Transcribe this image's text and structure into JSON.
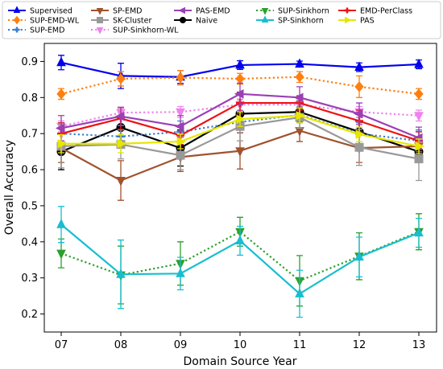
{
  "chart_data": {
    "type": "line",
    "xlabel": "Domain Source Year",
    "ylabel": "Overall Accuracy",
    "categories": [
      "07",
      "08",
      "09",
      "10",
      "11",
      "12",
      "13"
    ],
    "ylim": [
      0.15,
      0.95
    ],
    "yticks": [
      0.2,
      0.3,
      0.4,
      0.5,
      0.6,
      0.7,
      0.8,
      0.9
    ],
    "yticklabels": [
      "0.2",
      "0.3",
      "0.4",
      "0.5",
      "0.6",
      "0.7",
      "0.8",
      "0.9"
    ],
    "grid": false,
    "legend_position": "top, above plot, 4 columns",
    "series": [
      {
        "name": "Supervised",
        "color": "#0000ee",
        "style": "solid",
        "marker": "tri-up",
        "values": [
          0.897,
          0.86,
          0.857,
          0.89,
          0.893,
          0.884,
          0.892
        ],
        "errors": [
          0.02,
          0.035,
          0.018,
          0.012,
          0.008,
          0.012,
          0.012
        ]
      },
      {
        "name": "Naive",
        "color": "#000000",
        "style": "solid",
        "marker": "circle",
        "values": [
          0.65,
          0.717,
          0.66,
          0.755,
          0.76,
          0.705,
          0.65
        ],
        "errors": [
          0.05,
          0.05,
          0.05,
          0.04,
          0.03,
          0.04,
          0.03
        ]
      },
      {
        "name": "SUP-EMD",
        "color": "#3a7ed1",
        "style": "dotted",
        "marker": "plus",
        "values": [
          0.7,
          0.692,
          0.705,
          0.732,
          0.752,
          0.7,
          0.68
        ],
        "errors": [
          0.03,
          0.03,
          0.03,
          0.03,
          0.02,
          0.03,
          0.03
        ]
      },
      {
        "name": "SUP-EMD-WL",
        "color": "#ff7f0e",
        "style": "dotted",
        "marker": "diamond",
        "values": [
          0.81,
          0.852,
          0.855,
          0.852,
          0.857,
          0.83,
          0.81
        ],
        "errors": [
          0.015,
          0.02,
          0.02,
          0.015,
          0.015,
          0.03,
          0.015
        ]
      },
      {
        "name": "SUP-Sinkhorn",
        "color": "#2ca02c",
        "style": "dotted",
        "marker": "tri-down",
        "values": [
          0.368,
          0.308,
          0.34,
          0.428,
          0.292,
          0.36,
          0.428
        ],
        "errors": [
          0.04,
          0.08,
          0.06,
          0.04,
          0.07,
          0.065,
          0.05
        ]
      },
      {
        "name": "SUP-Sinkhorn-WL",
        "color": "#ee82ee",
        "style": "dotted",
        "marker": "tri-down",
        "values": [
          0.72,
          0.758,
          0.76,
          0.78,
          0.78,
          0.76,
          0.75
        ],
        "errors": [
          0.015,
          0.015,
          0.015,
          0.015,
          0.015,
          0.015,
          0.015
        ]
      },
      {
        "name": "SP-EMD",
        "color": "#a0522d",
        "style": "solid",
        "marker": "tri-down",
        "values": [
          0.66,
          0.57,
          0.635,
          0.652,
          0.708,
          0.66,
          0.665
        ],
        "errors": [
          0.04,
          0.055,
          0.04,
          0.05,
          0.03,
          0.04,
          0.04
        ]
      },
      {
        "name": "SP-Sinkhorn",
        "color": "#17becf",
        "style": "solid",
        "marker": "tri-up",
        "values": [
          0.448,
          0.31,
          0.312,
          0.403,
          0.256,
          0.358,
          0.425
        ],
        "errors": [
          0.05,
          0.095,
          0.045,
          0.04,
          0.065,
          0.055,
          0.04
        ]
      },
      {
        "name": "SK-Cluster",
        "color": "#999999",
        "style": "solid",
        "marker": "square",
        "values": [
          0.665,
          0.67,
          0.64,
          0.72,
          0.745,
          0.662,
          0.63
        ],
        "errors": [
          0.06,
          0.04,
          0.04,
          0.04,
          0.03,
          0.05,
          0.06
        ]
      },
      {
        "name": "EMD-PerClass",
        "color": "#ee1111",
        "style": "solid",
        "marker": "plus",
        "values": [
          0.7,
          0.742,
          0.695,
          0.785,
          0.785,
          0.735,
          0.68
        ],
        "errors": [
          0.03,
          0.03,
          0.025,
          0.03,
          0.02,
          0.03,
          0.025
        ]
      },
      {
        "name": "PAS-EMD",
        "color": "#9b3fb5",
        "style": "solid",
        "marker": "tri-left",
        "values": [
          0.715,
          0.748,
          0.72,
          0.81,
          0.8,
          0.755,
          0.688
        ],
        "errors": [
          0.035,
          0.025,
          0.03,
          0.03,
          0.03,
          0.03,
          0.03
        ]
      },
      {
        "name": "PAS",
        "color": "#e6e600",
        "style": "solid",
        "marker": "tri-right",
        "values": [
          0.672,
          0.672,
          0.678,
          0.74,
          0.75,
          0.698,
          0.665
        ],
        "errors": [
          0.025,
          0.025,
          0.02,
          0.02,
          0.02,
          0.02,
          0.02
        ]
      }
    ],
    "legend_order": [
      "Supervised",
      "SUP-EMD-WL",
      "SP-EMD",
      "SK-Cluster",
      "PAS-EMD",
      "Naive",
      "SUP-Sinkhorn",
      "SP-Sinkhorn",
      "EMD-PerClass",
      "PAS",
      "SUP-EMD",
      "SUP-Sinkhorn-WL"
    ]
  }
}
